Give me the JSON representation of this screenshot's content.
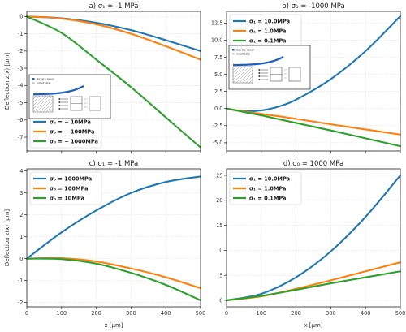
{
  "figure": {
    "x_label": "x [μm]",
    "y_label": "Deflection z(x) [μm]",
    "inset_legend": {
      "device": "device layer",
      "substrate": "substrate"
    }
  },
  "chart_data": [
    {
      "type": "line",
      "title": "a) σ₁ = -1 MPa",
      "xlabel": "",
      "ylabel": "Deflection z(x) [μm]",
      "xlim": [
        0,
        500
      ],
      "ylim": [
        -7.8,
        0.3
      ],
      "xticks": [
        0,
        100,
        200,
        300,
        400,
        500
      ],
      "show_xtick_labels": false,
      "yticks": [
        0,
        -1,
        -2,
        -3,
        -4,
        -5,
        -6,
        -7
      ],
      "legend": "lower-left",
      "has_inset": true,
      "inset_position": "mid-left",
      "grid": true,
      "x": [
        0,
        100,
        200,
        300,
        400,
        500
      ],
      "series": [
        {
          "name": "σ₀ = − 10MPa",
          "color": "#1f77b4",
          "values": [
            0,
            -0.1,
            -0.36,
            -0.79,
            -1.37,
            -2.0
          ]
        },
        {
          "name": "σ₀ = − 100MPa",
          "color": "#ff7f0e",
          "values": [
            0,
            -0.12,
            -0.45,
            -1.0,
            -1.72,
            -2.5
          ]
        },
        {
          "name": "σ₀ = − 1000MPa",
          "color": "#2ca02c",
          "values": [
            0,
            -0.95,
            -2.5,
            -4.1,
            -5.85,
            -7.6
          ]
        }
      ]
    },
    {
      "type": "line",
      "title": "b) σ₀ = -1000 MPa",
      "xlabel": "",
      "ylabel": "",
      "xlim": [
        0,
        500
      ],
      "ylim": [
        -6.2,
        14.2
      ],
      "xticks": [
        0,
        100,
        200,
        300,
        400,
        500
      ],
      "show_xtick_labels": false,
      "yticks": [
        -5.0,
        -2.5,
        0.0,
        2.5,
        5.0,
        7.5,
        10.0,
        12.5
      ],
      "legend": "top-left",
      "has_inset": true,
      "inset_position": "upper-left",
      "grid": true,
      "x": [
        0,
        50,
        100,
        150,
        200,
        300,
        400,
        500
      ],
      "series": [
        {
          "name": "σ₁ = 10.0MPa",
          "color": "#1f77b4",
          "values": [
            0,
            -0.38,
            -0.27,
            0.3,
            1.3,
            4.3,
            8.4,
            13.5
          ]
        },
        {
          "name": "σ₁ = 1.0MPa",
          "color": "#ff7f0e",
          "values": [
            0,
            -0.42,
            -0.78,
            -1.12,
            -1.5,
            -2.3,
            -3.05,
            -3.8
          ]
        },
        {
          "name": "σ₁ = 0.1MPa",
          "color": "#2ca02c",
          "values": [
            0,
            -0.5,
            -1.0,
            -1.55,
            -2.1,
            -3.2,
            -4.35,
            -5.5
          ]
        }
      ]
    },
    {
      "type": "line",
      "title": "c) σ₁ = -1 MPa",
      "xlabel": "x [μm]",
      "ylabel": "Deflection z(x) [μm]",
      "xlim": [
        0,
        500
      ],
      "ylim": [
        -2.2,
        4.1
      ],
      "xticks": [
        0,
        100,
        200,
        300,
        400,
        500
      ],
      "show_xtick_labels": true,
      "yticks": [
        -2,
        -1,
        0,
        1,
        2,
        3,
        4
      ],
      "legend": "top-left",
      "has_inset": false,
      "grid": true,
      "x": [
        0,
        100,
        200,
        300,
        400,
        500
      ],
      "series": [
        {
          "name": "σ₀ = 1000MPa",
          "color": "#1f77b4",
          "values": [
            0,
            1.2,
            2.2,
            3.0,
            3.5,
            3.75
          ]
        },
        {
          "name": "σ₀ = 100MPa",
          "color": "#ff7f0e",
          "values": [
            0,
            0.02,
            -0.13,
            -0.45,
            -0.85,
            -1.35
          ]
        },
        {
          "name": "σ₀ = 10MPa",
          "color": "#2ca02c",
          "values": [
            0,
            -0.02,
            -0.23,
            -0.65,
            -1.2,
            -1.9
          ]
        }
      ]
    },
    {
      "type": "line",
      "title": "d) σ₀ = 1000 MPa",
      "xlabel": "x [μm]",
      "ylabel": "",
      "xlim": [
        0,
        500
      ],
      "ylim": [
        -1.3,
        26.3
      ],
      "xticks": [
        0,
        100,
        200,
        300,
        400,
        500
      ],
      "show_xtick_labels": true,
      "yticks": [
        0,
        5,
        10,
        15,
        20,
        25
      ],
      "legend": "top-left",
      "has_inset": false,
      "grid": true,
      "x": [
        0,
        100,
        200,
        300,
        400,
        500
      ],
      "series": [
        {
          "name": "σ₁ = 10.0MPa",
          "color": "#1f77b4",
          "values": [
            0,
            1.3,
            4.6,
            9.8,
            16.7,
            25.0
          ]
        },
        {
          "name": "σ₁ = 1.0MPa",
          "color": "#ff7f0e",
          "values": [
            0,
            0.8,
            2.3,
            4.0,
            5.8,
            7.6
          ]
        },
        {
          "name": "σ₁ = 0.1MPa",
          "color": "#2ca02c",
          "values": [
            0,
            0.9,
            2.1,
            3.4,
            4.6,
            5.8
          ]
        }
      ]
    }
  ]
}
